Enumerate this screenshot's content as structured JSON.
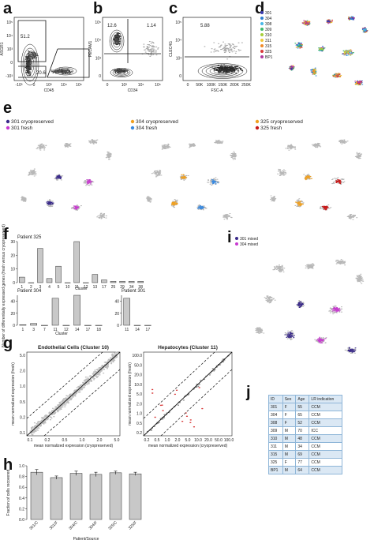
{
  "letters": {
    "a": "a",
    "b": "b",
    "c": "c",
    "d": "d",
    "e": "e",
    "f": "f",
    "g": "g",
    "h": "h",
    "i": "i",
    "j": "j"
  },
  "flow": {
    "a": {
      "ylabel": "ASGR1",
      "xlabel": "CD45",
      "gates": [
        "51.2",
        "20.6",
        "19.3"
      ],
      "yticks": [
        "10⁵",
        "10⁴",
        "10³",
        "0",
        "-10³"
      ],
      "xticks": [
        "-10³",
        "0",
        "10³",
        "10⁴",
        "10⁵"
      ]
    },
    "b": {
      "ylabel": "PECAM1",
      "xlabel": "CD34",
      "gates": [
        "12.6",
        "1.14"
      ],
      "yticks": [
        "10⁵",
        "10⁴",
        "10³",
        "0"
      ],
      "xticks": [
        "0",
        "10³",
        "10⁴",
        "10⁵"
      ]
    },
    "c": {
      "ylabel": "CLEC4G",
      "xlabel": "FSC-A",
      "gates": [
        "5.88"
      ],
      "yticks": [
        "10⁵",
        "10⁴",
        "10³",
        "0"
      ],
      "xticks": [
        "0",
        "50K",
        "100K",
        "150K",
        "200K",
        "250K"
      ]
    }
  },
  "legend_d": [
    {
      "label": "301",
      "color": "#3b3bb0"
    },
    {
      "label": "304",
      "color": "#2f7fd0"
    },
    {
      "label": "308",
      "color": "#49b8e8"
    },
    {
      "label": "309",
      "color": "#3fb96e"
    },
    {
      "label": "310",
      "color": "#a7cf3a"
    },
    {
      "label": "311",
      "color": "#f0c83a"
    },
    {
      "label": "315",
      "color": "#f08b2a"
    },
    {
      "label": "325",
      "color": "#d83a3a"
    },
    {
      "label": "BP1",
      "color": "#b03aa0"
    }
  ],
  "panel_e": [
    {
      "cryo": "301 cryopreserved",
      "fresh": "301 fresh",
      "cryo_color": "#3a2a8a",
      "fresh_color": "#c83ad0"
    },
    {
      "cryo": "304 cryopreserved",
      "fresh": "304 fresh",
      "cryo_color": "#f0a020",
      "fresh_color": "#3a8ae0"
    },
    {
      "cryo": "325 cryopreserved",
      "fresh": "325 fresh",
      "cryo_color": "#f0a020",
      "fresh_color": "#c81818"
    }
  ],
  "panel_f": {
    "ylabel": "Number of differentially expressed genes (fresh versus cryopreserved)",
    "xlabel": "Cluster",
    "p325": {
      "title": "Patient 325",
      "categories": [
        "1",
        "2",
        "3",
        "4",
        "5",
        "10",
        "11",
        "12",
        "13",
        "17",
        "25",
        "29",
        "34",
        "38"
      ],
      "values": [
        4,
        0,
        25,
        3,
        12,
        0,
        30,
        0,
        6,
        2,
        1,
        1,
        1,
        1
      ],
      "ymax": 30,
      "yticks": [
        "0",
        "10",
        "20",
        "30"
      ]
    },
    "p304": {
      "title": "Patient 304",
      "categories": [
        "1",
        "3",
        "7",
        "11",
        "12",
        "14",
        "17",
        "18"
      ],
      "values": [
        1,
        3,
        0,
        45,
        0,
        50,
        0,
        0
      ],
      "ymax": 50,
      "yticks": [
        "0",
        "20",
        "40"
      ]
    },
    "p301": {
      "title": "Patient 301",
      "categories": [
        "11",
        "14",
        "17"
      ],
      "values": [
        45,
        0,
        0
      ],
      "ymax": 50,
      "yticks": [
        "0",
        "20",
        "40"
      ]
    }
  },
  "panel_g": {
    "left": {
      "title": "Endothelial Cells (Cluster 10)",
      "xlabel": "mean normalized expression (cryopreserved)",
      "ylabel": "mean normalized expression (fresh)",
      "ticks": [
        "0.1",
        "0.2",
        "0.5",
        "1.0",
        "2.0",
        "5.0"
      ]
    },
    "right": {
      "title": "Hepatocytes (Cluster 11)",
      "xlabel": "mean normalized expression (cryopreserved)",
      "ylabel": "mean normalized expression (fresh)",
      "ticks": [
        "0.2",
        "0.5",
        "1.0",
        "2.0",
        "5.0",
        "10.0",
        "20.0",
        "50.0",
        "100.0"
      ]
    }
  },
  "panel_h": {
    "ylabel": "Fraction of cells recovered",
    "xlabel": "Patient/Source",
    "yticks": [
      "0.0",
      "0.2",
      "0.4",
      "0.6",
      "0.8",
      "1.0"
    ],
    "categories": [
      "301/C",
      "301/F",
      "304/C",
      "304/F",
      "325/C",
      "325/F"
    ],
    "values": [
      0.88,
      0.78,
      0.86,
      0.84,
      0.87,
      0.85
    ],
    "errors": [
      0.05,
      0.03,
      0.04,
      0.04,
      0.03,
      0.03
    ]
  },
  "panel_i": {
    "legend": [
      {
        "label": "301 mixed",
        "color": "#3a2a8a"
      },
      {
        "label": "304 mixed",
        "color": "#c83ad0"
      }
    ]
  },
  "table_j": {
    "headers": [
      "ID",
      "Sex",
      "Age",
      "LR indication"
    ],
    "rows": [
      [
        "301",
        "F",
        "55",
        "CCM"
      ],
      [
        "304",
        "F",
        "65",
        "CCM"
      ],
      [
        "308",
        "F",
        "52",
        "CCM"
      ],
      [
        "309",
        "M",
        "70",
        "ICC"
      ],
      [
        "310",
        "M",
        "48",
        "CCM"
      ],
      [
        "311",
        "M",
        "34",
        "CCM"
      ],
      [
        "315",
        "M",
        "69",
        "CCM"
      ],
      [
        "325",
        "F",
        "77",
        "CCM"
      ],
      [
        "BP1",
        "M",
        "64",
        "CCM"
      ]
    ]
  },
  "chart_data": [
    {
      "type": "bar",
      "title": "Patient 325",
      "xlabel": "Cluster",
      "ylabel": "Number of differentially expressed genes (fresh versus cryopreserved)",
      "categories": [
        "1",
        "2",
        "3",
        "4",
        "5",
        "10",
        "11",
        "12",
        "13",
        "17",
        "25",
        "29",
        "34",
        "38"
      ],
      "values": [
        4,
        0,
        25,
        3,
        12,
        0,
        30,
        0,
        6,
        2,
        1,
        1,
        1,
        1
      ],
      "ylim": [
        0,
        30
      ]
    },
    {
      "type": "bar",
      "title": "Patient 304",
      "xlabel": "Cluster",
      "categories": [
        "1",
        "3",
        "7",
        "11",
        "12",
        "14",
        "17",
        "18"
      ],
      "values": [
        1,
        3,
        0,
        45,
        0,
        50,
        0,
        0
      ],
      "ylim": [
        0,
        50
      ]
    },
    {
      "type": "bar",
      "title": "Patient 301",
      "categories": [
        "11",
        "14",
        "17"
      ],
      "values": [
        45,
        0,
        0
      ],
      "ylim": [
        0,
        50
      ]
    },
    {
      "type": "bar",
      "xlabel": "Patient/Source",
      "ylabel": "Fraction of cells recovered",
      "categories": [
        "301/C",
        "301/F",
        "304/C",
        "304/F",
        "325/C",
        "325/F"
      ],
      "values": [
        0.88,
        0.78,
        0.86,
        0.84,
        0.87,
        0.85
      ],
      "ylim": [
        0,
        1.0
      ]
    }
  ]
}
